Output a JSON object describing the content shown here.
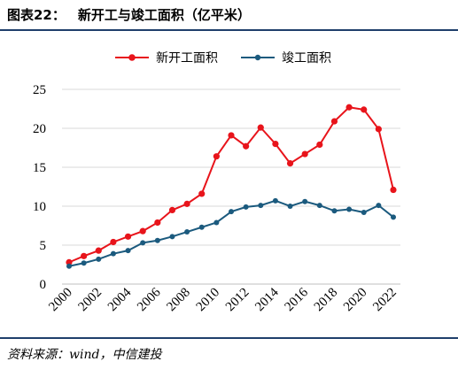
{
  "figure": {
    "number": "图表22：",
    "title": "新开工与竣工面积（亿平米）",
    "source": "资料来源：wind，中信建投"
  },
  "chart_data": {
    "type": "line",
    "title": "新开工与竣工面积（亿平米）",
    "xlabel": "",
    "ylabel": "",
    "x": [
      2000,
      2001,
      2002,
      2003,
      2004,
      2005,
      2006,
      2007,
      2008,
      2009,
      2010,
      2011,
      2012,
      2013,
      2014,
      2015,
      2016,
      2017,
      2018,
      2019,
      2020,
      2021,
      2022
    ],
    "x_tick_labels": [
      "2000",
      "2002",
      "2004",
      "2006",
      "2008",
      "2010",
      "2012",
      "2014",
      "2016",
      "2018",
      "2020",
      "2022"
    ],
    "ylim": [
      0,
      25
    ],
    "y_ticks": [
      0,
      5,
      10,
      15,
      20,
      25
    ],
    "grid": "horizontal",
    "legend_position": "top-center",
    "series": [
      {
        "name": "新开工面积",
        "color": "#e8141b",
        "values": [
          2.8,
          3.6,
          4.3,
          5.4,
          6.1,
          6.8,
          7.9,
          9.5,
          10.3,
          11.6,
          16.4,
          19.1,
          17.7,
          20.1,
          18.0,
          15.5,
          16.7,
          17.9,
          20.9,
          22.7,
          22.4,
          19.9,
          12.1
        ]
      },
      {
        "name": "竣工面积",
        "color": "#1b5a7e",
        "values": [
          2.3,
          2.7,
          3.2,
          3.9,
          4.3,
          5.3,
          5.6,
          6.1,
          6.7,
          7.3,
          7.9,
          9.3,
          9.9,
          10.1,
          10.7,
          10.0,
          10.6,
          10.1,
          9.4,
          9.6,
          9.2,
          10.1,
          8.6
        ]
      }
    ]
  }
}
